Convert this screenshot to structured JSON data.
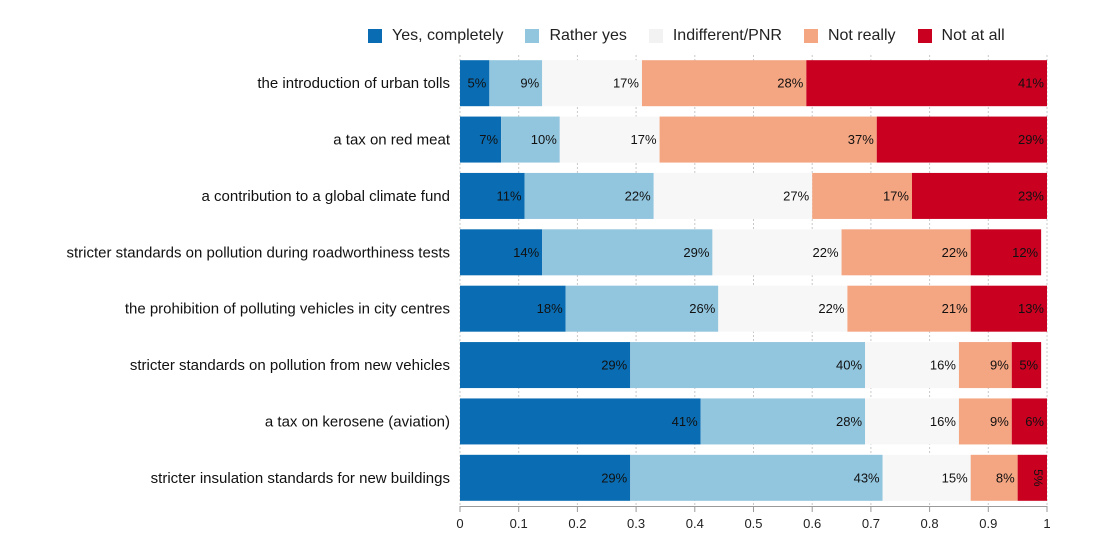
{
  "chart_data": {
    "type": "bar",
    "orientation": "horizontal",
    "stacked": true,
    "categories": [
      "the introduction of urban tolls",
      "a tax on red meat",
      "a contribution to a global climate fund",
      "stricter standards on pollution during roadworthiness tests",
      "the prohibition of polluting vehicles in city centres",
      "stricter standards on pollution from new vehicles",
      "a tax on kerosene (aviation)",
      "stricter insulation standards for new buildings"
    ],
    "series": [
      {
        "name": "Yes, completely",
        "color": "#0a6db3",
        "values": [
          0.05,
          0.07,
          0.11,
          0.14,
          0.18,
          0.29,
          0.41,
          0.29
        ],
        "labels": [
          "5%",
          "7%",
          "11%",
          "14%",
          "18%",
          "29%",
          "41%",
          "29%"
        ]
      },
      {
        "name": "Rather yes",
        "color": "#92c5de",
        "values": [
          0.09,
          0.1,
          0.22,
          0.29,
          0.26,
          0.4,
          0.28,
          0.43
        ],
        "labels": [
          "9%",
          "10%",
          "22%",
          "29%",
          "26%",
          "40%",
          "28%",
          "43%"
        ]
      },
      {
        "name": "Indifferent/PNR",
        "color": "#f7f7f7",
        "values": [
          0.17,
          0.17,
          0.27,
          0.22,
          0.22,
          0.16,
          0.16,
          0.15
        ],
        "labels": [
          "17%",
          "17%",
          "27%",
          "22%",
          "22%",
          "16%",
          "16%",
          "15%"
        ]
      },
      {
        "name": "Not really",
        "color": "#f4a582",
        "values": [
          0.28,
          0.37,
          0.17,
          0.22,
          0.21,
          0.09,
          0.09,
          0.08
        ],
        "labels": [
          "28%",
          "37%",
          "17%",
          "22%",
          "21%",
          "9%",
          "9%",
          "8%"
        ]
      },
      {
        "name": "Not at all",
        "color": "#ca0020",
        "values": [
          0.41,
          0.29,
          0.23,
          0.12,
          0.13,
          0.05,
          0.06,
          0.05
        ],
        "labels": [
          "41%",
          "29%",
          "23%",
          "12%",
          "13%",
          "5%",
          "6%",
          "5%"
        ]
      }
    ],
    "xlim": [
      0,
      1
    ],
    "xticks": [
      "0",
      "0.1",
      "0.2",
      "0.3",
      "0.4",
      "0.5",
      "0.6",
      "0.7",
      "0.8",
      "0.9",
      "1"
    ],
    "xlabel": "",
    "ylabel": "",
    "title": "",
    "grid": true,
    "legend_position": "top"
  }
}
